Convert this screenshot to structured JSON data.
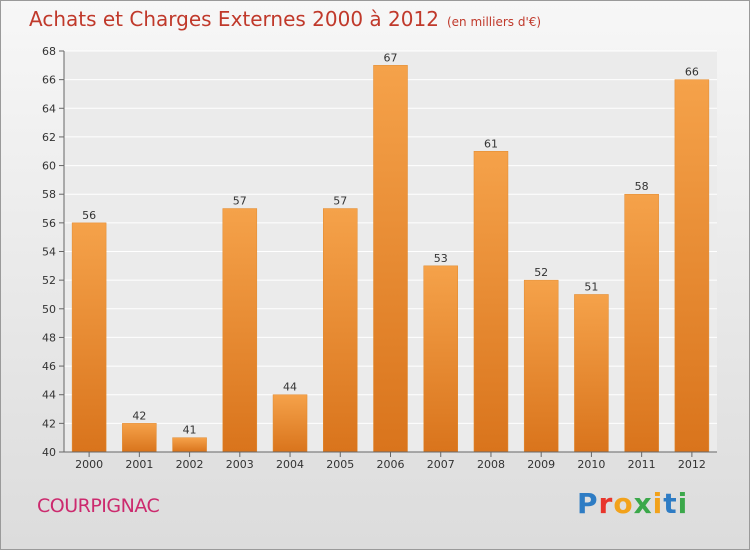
{
  "title": "Achats et Charges Externes 2000 à 2012",
  "subtitle": "(en milliers d'€)",
  "location": "COURPIGNAC",
  "brand": {
    "letters": [
      "P",
      "r",
      "o",
      "x",
      "i",
      "t",
      "i"
    ],
    "colors": [
      "#2e7cc4",
      "#e8352b",
      "#f2a21b",
      "#3ba84a",
      "#f2a21b",
      "#2e7cc4",
      "#3ba84a"
    ]
  },
  "colors": {
    "bar_light": "#f5a24a",
    "bar_dark": "#d9741c",
    "title": "#c0392b",
    "location": "#cc2a6e"
  },
  "chart_data": {
    "type": "bar",
    "categories": [
      "2000",
      "2001",
      "2002",
      "2003",
      "2004",
      "2005",
      "2006",
      "2007",
      "2008",
      "2009",
      "2010",
      "2011",
      "2012"
    ],
    "values": [
      56,
      42,
      41,
      57,
      44,
      57,
      67,
      53,
      61,
      52,
      51,
      58,
      66
    ],
    "data_labels": [
      "56",
      "42",
      "41",
      "57",
      "44",
      "57",
      "67",
      "53",
      "61",
      "52",
      "51",
      "58",
      "66"
    ],
    "yticks": [
      "40",
      "42",
      "44",
      "46",
      "48",
      "50",
      "52",
      "54",
      "56",
      "58",
      "60",
      "62",
      "64",
      "66",
      "68"
    ],
    "ylim": [
      40,
      68
    ],
    "grid": true,
    "xlabel": "",
    "ylabel": ""
  }
}
